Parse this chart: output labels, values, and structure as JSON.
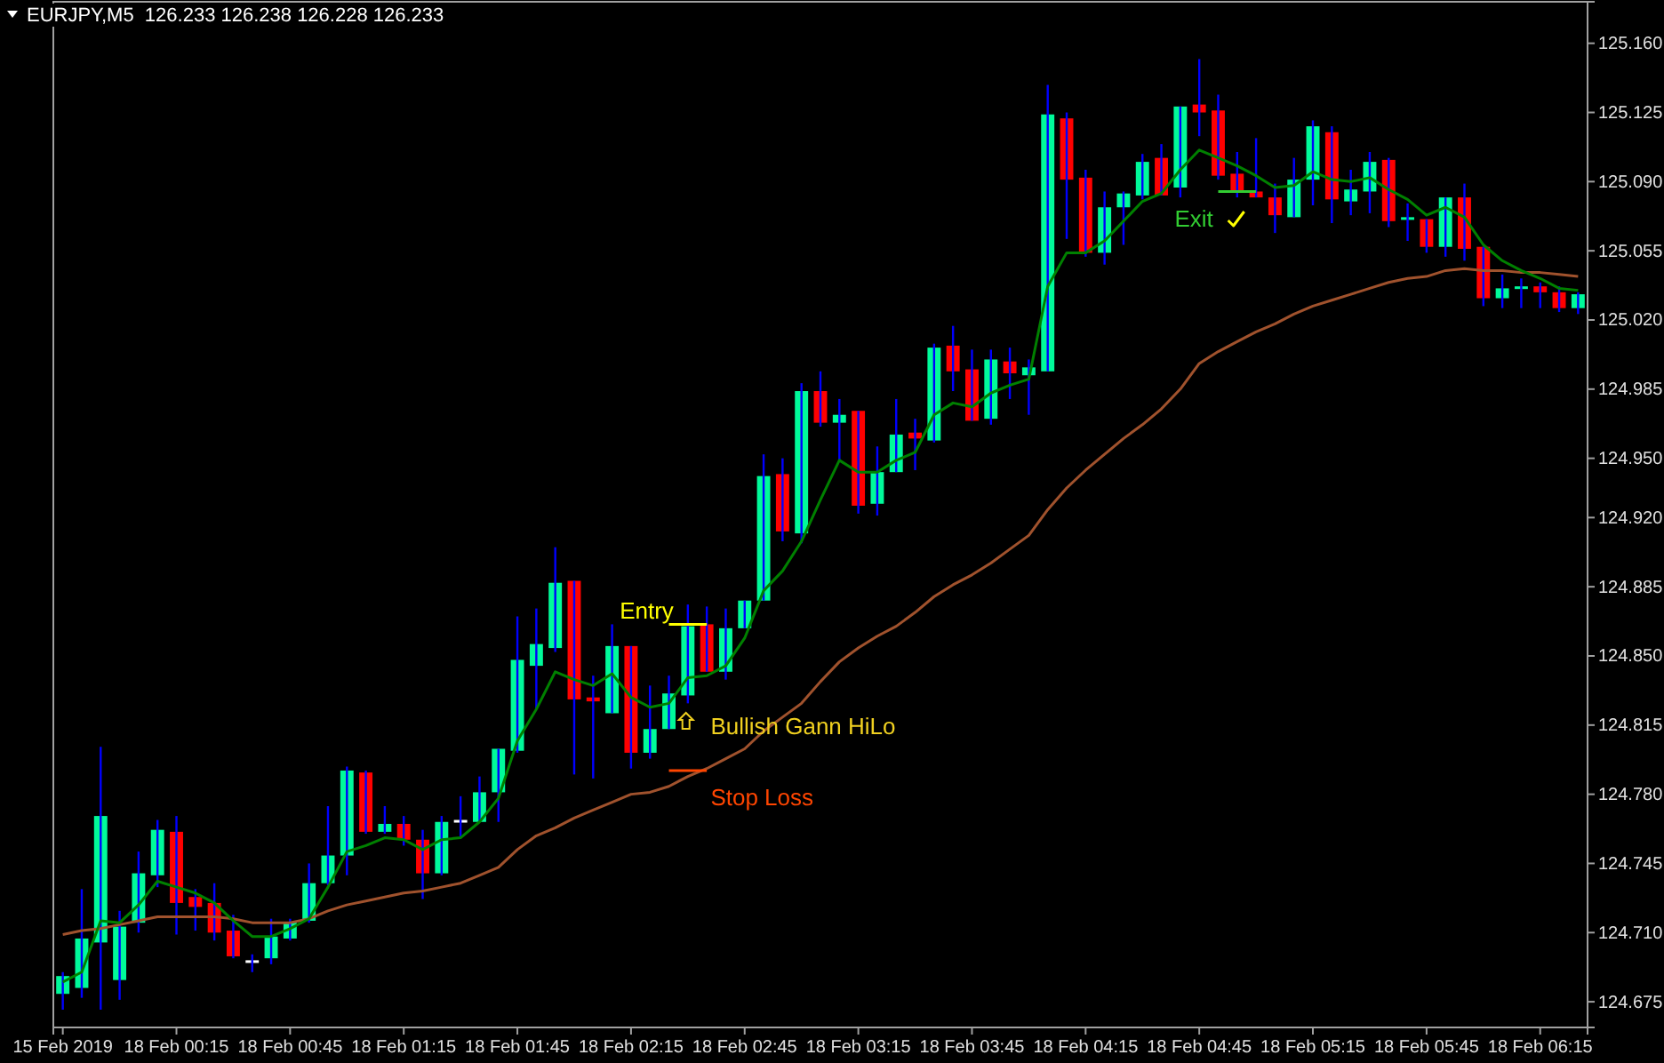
{
  "chart_data": {
    "type": "candlestick",
    "title": "EURJPY,M5  126.233 126.238 126.228 126.233",
    "categories": [
      "15 Feb 2019",
      null,
      null,
      null,
      null,
      null,
      "18 Feb 00:15",
      null,
      null,
      null,
      null,
      null,
      "18 Feb 00:45",
      null,
      null,
      null,
      null,
      null,
      "18 Feb 01:15",
      null,
      null,
      null,
      null,
      null,
      "18 Feb 01:45",
      null,
      null,
      null,
      null,
      null,
      "18 Feb 02:15",
      null,
      null,
      null,
      null,
      null,
      "18 Feb 02:45",
      null,
      null,
      null,
      null,
      null,
      "18 Feb 03:15",
      null,
      null,
      null,
      null,
      null,
      "18 Feb 03:45",
      null,
      null,
      null,
      null,
      null,
      "18 Feb 04:15",
      null,
      null,
      null,
      null,
      null,
      "18 Feb 04:45",
      null,
      null,
      null,
      null,
      null,
      "18 Feb 05:15",
      null,
      null,
      null,
      null,
      null,
      "18 Feb 05:45",
      null,
      null,
      null,
      null,
      null,
      "18 Feb 06:15",
      null,
      null
    ],
    "ohlc": [
      [
        124.679,
        124.69,
        124.671,
        124.688
      ],
      [
        124.682,
        124.732,
        124.677,
        124.707
      ],
      [
        124.705,
        124.804,
        124.671,
        124.769
      ],
      [
        124.686,
        124.721,
        124.676,
        124.713
      ],
      [
        124.715,
        124.751,
        124.71,
        124.74
      ],
      [
        124.739,
        124.767,
        124.733,
        124.762
      ],
      [
        124.761,
        124.769,
        124.709,
        124.725
      ],
      [
        124.728,
        124.732,
        124.711,
        124.723
      ],
      [
        124.725,
        124.735,
        124.706,
        124.71
      ],
      [
        124.711,
        124.719,
        124.697,
        124.698
      ],
      [
        124.696,
        124.699,
        124.69,
        124.696
      ],
      [
        124.697,
        124.717,
        124.694,
        124.708
      ],
      [
        124.707,
        124.717,
        124.706,
        124.715
      ],
      [
        124.716,
        124.745,
        124.715,
        124.735
      ],
      [
        124.735,
        124.774,
        124.734,
        124.749
      ],
      [
        124.749,
        124.794,
        124.739,
        124.792
      ],
      [
        124.791,
        124.792,
        124.76,
        124.761
      ],
      [
        124.761,
        124.774,
        124.76,
        124.765
      ],
      [
        124.765,
        124.769,
        124.754,
        124.757
      ],
      [
        124.757,
        124.762,
        124.727,
        124.74
      ],
      [
        124.74,
        124.769,
        124.739,
        124.766
      ],
      [
        124.767,
        124.779,
        124.758,
        124.767
      ],
      [
        124.766,
        124.789,
        124.766,
        124.781
      ],
      [
        124.781,
        124.803,
        124.766,
        124.803
      ],
      [
        124.802,
        124.87,
        124.801,
        124.848
      ],
      [
        124.845,
        124.874,
        124.823,
        124.856
      ],
      [
        124.854,
        124.905,
        124.852,
        124.887
      ],
      [
        124.888,
        124.888,
        124.79,
        124.828
      ],
      [
        124.829,
        124.84,
        124.788,
        124.827
      ],
      [
        124.821,
        124.866,
        124.821,
        124.855
      ],
      [
        124.855,
        124.855,
        124.793,
        124.801
      ],
      [
        124.801,
        124.835,
        124.798,
        124.813
      ],
      [
        124.813,
        124.84,
        124.813,
        124.831
      ],
      [
        124.83,
        124.876,
        124.826,
        124.865
      ],
      [
        124.866,
        124.875,
        124.842,
        124.842
      ],
      [
        124.842,
        124.874,
        124.838,
        124.864
      ],
      [
        124.864,
        124.878,
        124.864,
        124.878
      ],
      [
        124.878,
        124.952,
        124.878,
        124.941
      ],
      [
        124.942,
        124.95,
        124.908,
        124.913
      ],
      [
        124.912,
        124.988,
        124.907,
        124.984
      ],
      [
        124.984,
        124.994,
        124.966,
        124.968
      ],
      [
        124.968,
        124.98,
        124.949,
        124.972
      ],
      [
        124.974,
        124.974,
        124.922,
        124.926
      ],
      [
        124.927,
        124.956,
        124.921,
        124.943
      ],
      [
        124.943,
        124.98,
        124.943,
        124.962
      ],
      [
        124.963,
        124.97,
        124.944,
        124.96
      ],
      [
        124.959,
        125.008,
        124.958,
        125.006
      ],
      [
        125.007,
        125.017,
        124.984,
        124.994
      ],
      [
        124.995,
        125.005,
        124.969,
        124.969
      ],
      [
        124.97,
        125.005,
        124.967,
        125.0
      ],
      [
        124.999,
        125.006,
        124.98,
        124.993
      ],
      [
        124.992,
        125.0,
        124.972,
        124.996
      ],
      [
        124.994,
        125.139,
        124.994,
        125.124
      ],
      [
        125.122,
        125.125,
        125.061,
        125.091
      ],
      [
        125.092,
        125.096,
        125.052,
        125.054
      ],
      [
        125.054,
        125.085,
        125.048,
        125.077
      ],
      [
        125.077,
        125.085,
        125.058,
        125.084
      ],
      [
        125.083,
        125.104,
        125.081,
        125.1
      ],
      [
        125.102,
        125.109,
        125.083,
        125.083
      ],
      [
        125.087,
        125.128,
        125.082,
        125.128
      ],
      [
        125.129,
        125.152,
        125.113,
        125.125
      ],
      [
        125.126,
        125.134,
        125.091,
        125.093
      ],
      [
        125.094,
        125.105,
        125.082,
        125.085
      ],
      [
        125.085,
        125.112,
        125.082,
        125.082
      ],
      [
        125.082,
        125.089,
        125.064,
        125.073
      ],
      [
        125.072,
        125.102,
        125.072,
        125.091
      ],
      [
        125.091,
        125.121,
        125.078,
        125.118
      ],
      [
        125.115,
        125.118,
        125.069,
        125.081
      ],
      [
        125.08,
        125.096,
        125.073,
        125.086
      ],
      [
        125.085,
        125.105,
        125.074,
        125.1
      ],
      [
        125.101,
        125.102,
        125.067,
        125.07
      ],
      [
        125.071,
        125.079,
        125.06,
        125.072
      ],
      [
        125.071,
        125.071,
        125.054,
        125.057
      ],
      [
        125.057,
        125.082,
        125.052,
        125.082
      ],
      [
        125.082,
        125.089,
        125.05,
        125.056
      ],
      [
        125.057,
        125.057,
        125.027,
        125.031
      ],
      [
        125.031,
        125.043,
        125.026,
        125.036
      ],
      [
        125.036,
        125.041,
        125.026,
        125.037
      ],
      [
        125.037,
        125.039,
        125.026,
        125.034
      ],
      [
        125.034,
        125.037,
        125.024,
        125.026
      ],
      [
        125.026,
        125.034,
        125.023,
        125.033
      ]
    ],
    "colors": [
      "#00fa9a",
      "#00fa9a",
      "#00fa9a",
      "#00fa9a",
      "#00fa9a",
      "#00fa9a",
      "#ff0000",
      "#ff0000",
      "#ff0000",
      "#ff0000",
      "#ffffff",
      "#00fa9a",
      "#00fa9a",
      "#00fa9a",
      "#00fa9a",
      "#00fa9a",
      "#ff0000",
      "#00fa9a",
      "#ff0000",
      "#ff0000",
      "#00fa9a",
      "#ffffff",
      "#00fa9a",
      "#00fa9a",
      "#00fa9a",
      "#00fa9a",
      "#00fa9a",
      "#ff0000",
      "#ff0000",
      "#00fa9a",
      "#ff0000",
      "#00fa9a",
      "#00fa9a",
      "#00fa9a",
      "#ff0000",
      "#00fa9a",
      "#00fa9a",
      "#00fa9a",
      "#ff0000",
      "#00fa9a",
      "#ff0000",
      "#00fa9a",
      "#ff0000",
      "#00fa9a",
      "#00fa9a",
      "#ff0000",
      "#00fa9a",
      "#ff0000",
      "#ff0000",
      "#00fa9a",
      "#ff0000",
      "#00fa9a",
      "#00fa9a",
      "#ff0000",
      "#ff0000",
      "#00fa9a",
      "#00fa9a",
      "#00fa9a",
      "#ff0000",
      "#00fa9a",
      "#ff0000",
      "#ff0000",
      "#ff0000",
      "#ff0000",
      "#ff0000",
      "#00fa9a",
      "#00fa9a",
      "#ff0000",
      "#00fa9a",
      "#00fa9a",
      "#ff0000",
      "#00fa9a",
      "#ff0000",
      "#00fa9a",
      "#ff0000",
      "#ff0000",
      "#00fa9a",
      "#00fa9a",
      "#ff0000",
      "#ff0000",
      "#00fa9a"
    ],
    "series": [
      {
        "type": "line",
        "color": "#a0522d",
        "values": [
          124.709,
          124.711,
          124.712,
          124.714,
          124.716,
          124.718,
          124.718,
          124.718,
          124.718,
          124.717,
          124.715,
          124.715,
          124.715,
          124.717,
          124.721,
          124.724,
          124.726,
          124.728,
          124.73,
          124.731,
          124.733,
          124.735,
          124.739,
          124.743,
          124.752,
          124.759,
          124.763,
          124.768,
          124.772,
          124.776,
          124.78,
          124.781,
          124.784,
          124.789,
          124.793,
          124.798,
          124.803,
          124.812,
          124.819,
          124.826,
          124.837,
          124.847,
          124.854,
          124.86,
          124.865,
          124.872,
          124.88,
          124.886,
          124.891,
          124.897,
          124.904,
          124.911,
          124.924,
          124.935,
          124.944,
          124.952,
          124.96,
          124.967,
          124.975,
          124.985,
          124.998,
          125.004,
          125.009,
          125.014,
          125.018,
          125.023,
          125.027,
          125.03,
          125.033,
          125.036,
          125.039,
          125.041,
          125.042,
          125.045,
          125.046,
          125.045,
          125.045,
          125.044,
          125.044,
          125.043,
          125.042
        ]
      },
      {
        "type": "line",
        "color": "#008000",
        "values": [
          124.685,
          124.69,
          124.716,
          124.715,
          124.724,
          124.736,
          124.733,
          124.73,
          124.725,
          124.716,
          124.708,
          124.708,
          124.712,
          124.717,
          124.733,
          124.751,
          124.754,
          124.758,
          124.757,
          124.752,
          124.757,
          124.758,
          124.766,
          124.778,
          124.807,
          124.823,
          124.842,
          124.838,
          124.835,
          124.841,
          124.829,
          124.824,
          124.826,
          124.839,
          124.84,
          124.845,
          124.859,
          124.883,
          124.893,
          124.908,
          124.929,
          124.949,
          124.943,
          124.943,
          124.949,
          124.953,
          124.972,
          124.978,
          124.976,
          124.983,
          124.987,
          124.99,
          125.037,
          125.054,
          125.054,
          125.06,
          125.07,
          125.08,
          125.084,
          125.096,
          125.106,
          125.102,
          125.098,
          125.093,
          125.087,
          125.088,
          125.095,
          125.091,
          125.09,
          125.092,
          125.086,
          125.081,
          125.073,
          125.077,
          125.072,
          125.058,
          125.05,
          125.045,
          125.041,
          125.036,
          125.035
        ]
      },
      {
        "type": "line",
        "color": "#ffff00",
        "values": [
          null,
          null,
          null,
          null,
          null,
          null,
          null,
          null,
          null,
          null,
          null,
          null,
          null,
          null,
          null,
          null,
          null,
          null,
          null,
          null,
          null,
          null,
          null,
          null,
          null,
          null,
          null,
          null,
          null,
          null,
          null,
          null,
          124.866,
          124.866,
          124.866,
          null,
          null,
          null,
          null,
          null,
          null,
          null,
          null,
          null,
          null,
          null,
          null,
          null,
          null,
          null,
          null,
          null,
          null,
          null,
          null,
          null,
          null,
          null,
          null,
          null,
          null,
          null,
          null,
          null,
          null,
          null,
          null,
          null,
          null,
          null,
          null,
          null,
          null,
          null,
          null,
          null,
          null,
          null,
          null,
          null,
          null
        ]
      },
      {
        "type": "line",
        "color": "#ff4500",
        "values": [
          null,
          null,
          null,
          null,
          null,
          null,
          null,
          null,
          null,
          null,
          null,
          null,
          null,
          null,
          null,
          null,
          null,
          null,
          null,
          null,
          null,
          null,
          null,
          null,
          null,
          null,
          null,
          null,
          null,
          null,
          null,
          null,
          124.792,
          124.792,
          124.792,
          null,
          null,
          null,
          null,
          null,
          null,
          null,
          null,
          null,
          null,
          null,
          null,
          null,
          null,
          null,
          null,
          null,
          null,
          null,
          null,
          null,
          null,
          null,
          null,
          null,
          null,
          null,
          null,
          null,
          null,
          null,
          null,
          null,
          null,
          null,
          null,
          null,
          null,
          null,
          null,
          null,
          null,
          null,
          null,
          null,
          null
        ]
      },
      {
        "type": "line",
        "color": "#32cd32",
        "values": [
          null,
          null,
          null,
          null,
          null,
          null,
          null,
          null,
          null,
          null,
          null,
          null,
          null,
          null,
          null,
          null,
          null,
          null,
          null,
          null,
          null,
          null,
          null,
          null,
          null,
          null,
          null,
          null,
          null,
          null,
          null,
          null,
          null,
          null,
          null,
          null,
          null,
          null,
          null,
          null,
          null,
          null,
          null,
          null,
          null,
          null,
          null,
          null,
          null,
          null,
          null,
          null,
          null,
          null,
          null,
          null,
          null,
          null,
          null,
          null,
          null,
          125.085,
          125.085,
          125.085,
          null,
          null,
          null,
          null,
          null,
          null,
          null,
          null,
          null,
          null,
          null,
          null,
          null,
          null,
          null,
          null,
          null
        ]
      }
    ],
    "ylim": [
      124.662,
      125.181
    ],
    "yticks": [
      {
        "value": 124.675,
        "label": "124.675"
      },
      {
        "value": 124.71,
        "label": "124.710"
      },
      {
        "value": 124.745,
        "label": "124.745"
      },
      {
        "value": 124.78,
        "label": "124.780"
      },
      {
        "value": 124.815,
        "label": "124.815"
      },
      {
        "value": 124.85,
        "label": "124.850"
      },
      {
        "value": 124.885,
        "label": "124.885"
      },
      {
        "value": 124.92,
        "label": "124.920"
      },
      {
        "value": 124.95,
        "label": "124.950"
      },
      {
        "value": 124.985,
        "label": "124.985"
      },
      {
        "value": 125.02,
        "label": "125.020"
      },
      {
        "value": 125.055,
        "label": "125.055"
      },
      {
        "value": 125.09,
        "label": "125.090"
      },
      {
        "value": 125.125,
        "label": "125.125"
      },
      {
        "value": 125.16,
        "label": "125.160"
      }
    ],
    "annotations": [
      "Entry",
      "Bullish Gann HiLo",
      "Stop Loss",
      {
        "text": "Exit",
        "y": 125.085
      }
    ]
  }
}
